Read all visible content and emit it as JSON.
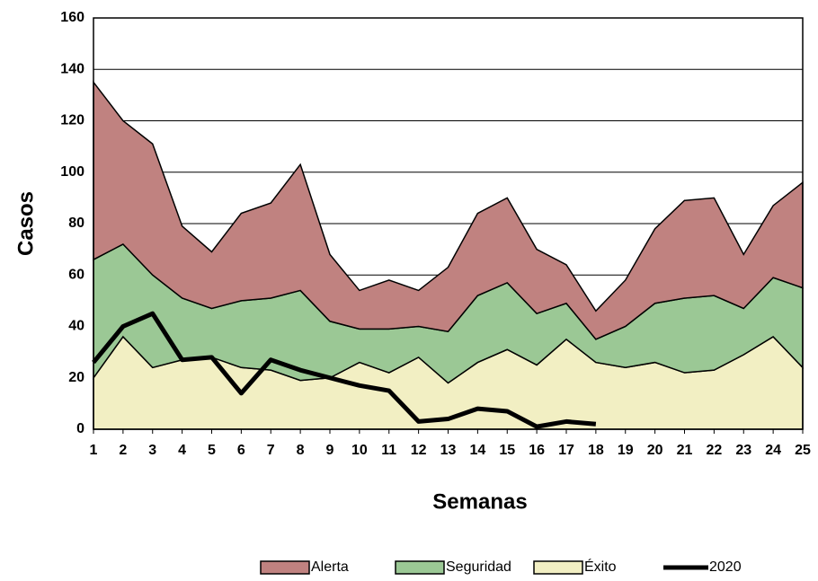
{
  "chart_data": {
    "type": "stacked_area",
    "xlabel": "Semanas",
    "ylabel": "Casos",
    "x": [
      1,
      2,
      3,
      4,
      5,
      6,
      7,
      8,
      9,
      10,
      11,
      12,
      13,
      14,
      15,
      16,
      17,
      18,
      19,
      20,
      21,
      22,
      23,
      24,
      25
    ],
    "xlim": [
      1,
      25
    ],
    "xticks": [
      1,
      2,
      3,
      4,
      5,
      6,
      7,
      8,
      9,
      10,
      11,
      12,
      13,
      14,
      15,
      16,
      17,
      18,
      19,
      20,
      21,
      22,
      23,
      24,
      25
    ],
    "ylim": [
      0,
      160
    ],
    "yticks": [
      0,
      20,
      40,
      60,
      80,
      100,
      120,
      140,
      160
    ],
    "grid": true,
    "series": [
      {
        "name": "Éxito",
        "color": "#f2efc3",
        "values": [
          20,
          36,
          24,
          27,
          28,
          24,
          23,
          19,
          20,
          26,
          22,
          28,
          18,
          26,
          31,
          25,
          35,
          26,
          24,
          26,
          22,
          23,
          29,
          36,
          24
        ]
      },
      {
        "name": "Seguridad",
        "color": "#9bc895",
        "values": [
          46,
          36,
          36,
          24,
          19,
          26,
          28,
          35,
          22,
          13,
          17,
          12,
          20,
          26,
          26,
          20,
          14,
          9,
          16,
          23,
          29,
          29,
          18,
          23,
          31
        ]
      },
      {
        "name": "Alerta",
        "color": "#c08280",
        "values": [
          69,
          48,
          51,
          28,
          22,
          34,
          37,
          49,
          26,
          15,
          19,
          14,
          25,
          32,
          33,
          25,
          15,
          11,
          18,
          29,
          38,
          38,
          21,
          28,
          41
        ]
      }
    ],
    "line": {
      "name": "2020",
      "color": "#000000",
      "values": [
        26,
        40,
        45,
        27,
        28,
        14,
        27,
        23,
        20,
        17,
        15,
        3,
        4,
        8,
        7,
        1,
        3,
        2,
        null,
        null,
        null,
        null,
        null,
        null,
        null
      ]
    },
    "legend": "bottom"
  }
}
